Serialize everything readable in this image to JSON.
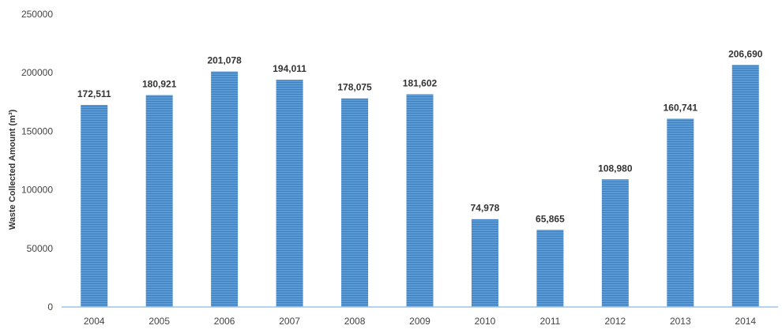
{
  "chart_data": {
    "type": "bar",
    "categories": [
      "2004",
      "2005",
      "2006",
      "2007",
      "2008",
      "2009",
      "2010",
      "2011",
      "2012",
      "2013",
      "2014"
    ],
    "values": [
      172511,
      180921,
      201078,
      194011,
      178075,
      181602,
      74978,
      65865,
      108980,
      160741,
      206690
    ],
    "data_labels": [
      "172,511",
      "180,921",
      "201,078",
      "194,011",
      "178,075",
      "181,602",
      "74,978",
      "65,865",
      "108,980",
      "160,741",
      "206,690"
    ],
    "title": "",
    "xlabel": "",
    "ylabel": "Waste Collected Amount (m³)",
    "ylim": [
      0,
      250000
    ],
    "yticks": [
      "0",
      "50000",
      "100000",
      "150000",
      "200000",
      "250000"
    ],
    "grid": false,
    "colors": {
      "bar": "#5b9bd5",
      "bar_stripe": "#3f7fbf",
      "axis": "#9dc3e6"
    }
  }
}
